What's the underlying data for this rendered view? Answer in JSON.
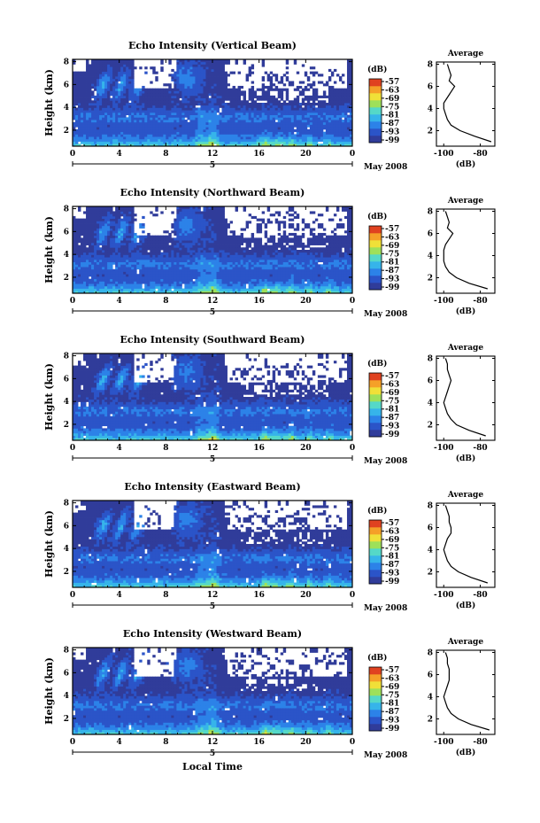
{
  "figure": {
    "xlabel": "Local Time",
    "date_label": "May 2008",
    "day_marker": "5",
    "cbar_unit": "(dB)",
    "avg_title": "Average",
    "avg_xlabel": "(dB)"
  },
  "chart_data": [
    {
      "type": "heatmap",
      "title": "Echo Intensity (Vertical Beam)",
      "ylabel": "Height (km)",
      "xlabel": "Local Time",
      "x_ticks": [
        "0",
        "4",
        "8",
        "12",
        "16",
        "20",
        "0"
      ],
      "xlim_hours": [
        0,
        24
      ],
      "y_ticks": [
        "2",
        "4",
        "6",
        "8"
      ],
      "ylim_km": [
        0.6,
        8.2
      ],
      "colorbar": {
        "label": "(dB)",
        "ticks": [
          "-57",
          "-63",
          "-69",
          "-75",
          "-81",
          "-87",
          "-93",
          "-99"
        ]
      },
      "average_profile": {
        "title": "Average",
        "xlabel": "(dB)",
        "x_ticks": [
          "-100",
          "-80"
        ],
        "xlim": [
          -104,
          -72
        ],
        "height_km": [
          1.0,
          1.5,
          2.0,
          2.5,
          3.0,
          3.5,
          4.0,
          4.5,
          5.0,
          5.5,
          6.0,
          6.5,
          7.0,
          7.5,
          8.0
        ],
        "db": [
          -74,
          -83,
          -91,
          -96,
          -98,
          -99,
          -100,
          -100,
          -98,
          -96,
          -94,
          -97,
          -96,
          -97,
          -98
        ]
      }
    },
    {
      "type": "heatmap",
      "title": "Echo Intensity (Northward Beam)",
      "ylabel": "Height (km)",
      "xlabel": "Local Time",
      "x_ticks": [
        "0",
        "4",
        "8",
        "12",
        "16",
        "20",
        "0"
      ],
      "xlim_hours": [
        0,
        24
      ],
      "y_ticks": [
        "2",
        "4",
        "6",
        "8"
      ],
      "ylim_km": [
        0.6,
        8.2
      ],
      "colorbar": {
        "label": "(dB)",
        "ticks": [
          "-57",
          "-63",
          "-69",
          "-75",
          "-81",
          "-87",
          "-93",
          "-99"
        ]
      },
      "average_profile": {
        "title": "Average",
        "xlabel": "(dB)",
        "x_ticks": [
          "-100",
          "-80"
        ],
        "xlim": [
          -104,
          -72
        ],
        "height_km": [
          1.0,
          1.5,
          2.0,
          2.5,
          3.0,
          3.5,
          4.0,
          4.5,
          5.0,
          5.5,
          6.0,
          6.5,
          7.0,
          7.5,
          8.0
        ],
        "db": [
          -76,
          -86,
          -93,
          -97,
          -99,
          -100,
          -100,
          -100,
          -99,
          -97,
          -95,
          -98,
          -97,
          -98,
          -99
        ]
      }
    },
    {
      "type": "heatmap",
      "title": "Echo Intensity (Southward Beam)",
      "ylabel": "Height (km)",
      "xlabel": "Local Time",
      "x_ticks": [
        "0",
        "4",
        "8",
        "12",
        "16",
        "20",
        "0"
      ],
      "xlim_hours": [
        0,
        24
      ],
      "y_ticks": [
        "2",
        "4",
        "6",
        "8"
      ],
      "ylim_km": [
        0.6,
        8.2
      ],
      "colorbar": {
        "label": "(dB)",
        "ticks": [
          "-57",
          "-63",
          "-69",
          "-75",
          "-81",
          "-87",
          "-93",
          "-99"
        ]
      },
      "average_profile": {
        "title": "Average",
        "xlabel": "(dB)",
        "x_ticks": [
          "-100",
          "-80"
        ],
        "xlim": [
          -104,
          -72
        ],
        "height_km": [
          1.0,
          1.5,
          2.0,
          2.5,
          3.0,
          3.5,
          4.0,
          4.5,
          5.0,
          5.5,
          6.0,
          6.5,
          7.0,
          7.5,
          8.0
        ],
        "db": [
          -77,
          -86,
          -93,
          -96,
          -98,
          -99,
          -100,
          -99,
          -98,
          -97,
          -96,
          -97,
          -98,
          -98,
          -99
        ]
      }
    },
    {
      "type": "heatmap",
      "title": "Echo Intensity (Eastward Beam)",
      "ylabel": "Height (km)",
      "xlabel": "Local Time",
      "x_ticks": [
        "0",
        "4",
        "8",
        "12",
        "16",
        "20",
        "0"
      ],
      "xlim_hours": [
        0,
        24
      ],
      "y_ticks": [
        "2",
        "4",
        "6",
        "8"
      ],
      "ylim_km": [
        0.6,
        8.2
      ],
      "colorbar": {
        "label": "(dB)",
        "ticks": [
          "-57",
          "-63",
          "-69",
          "-75",
          "-81",
          "-87",
          "-93",
          "-99"
        ]
      },
      "average_profile": {
        "title": "Average",
        "xlabel": "(dB)",
        "x_ticks": [
          "-100",
          "-80"
        ],
        "xlim": [
          -104,
          -72
        ],
        "height_km": [
          1.0,
          1.5,
          2.0,
          2.5,
          3.0,
          3.5,
          4.0,
          4.5,
          5.0,
          5.5,
          6.0,
          6.5,
          7.0,
          7.5,
          8.0
        ],
        "db": [
          -76,
          -85,
          -92,
          -96,
          -98,
          -99,
          -100,
          -99,
          -98,
          -96,
          -96,
          -97,
          -97,
          -98,
          -99
        ]
      }
    },
    {
      "type": "heatmap",
      "title": "Echo Intensity (Westward Beam)",
      "ylabel": "Height (km)",
      "xlabel": "Local Time",
      "x_ticks": [
        "0",
        "4",
        "8",
        "12",
        "16",
        "20",
        "0"
      ],
      "xlim_hours": [
        0,
        24
      ],
      "y_ticks": [
        "2",
        "4",
        "6",
        "8"
      ],
      "ylim_km": [
        0.6,
        8.2
      ],
      "colorbar": {
        "label": "(dB)",
        "ticks": [
          "-57",
          "-63",
          "-69",
          "-75",
          "-81",
          "-87",
          "-93",
          "-99"
        ]
      },
      "average_profile": {
        "title": "Average",
        "xlabel": "(dB)",
        "x_ticks": [
          "-100",
          "-80"
        ],
        "xlim": [
          -104,
          -72
        ],
        "height_km": [
          1.0,
          1.5,
          2.0,
          2.5,
          3.0,
          3.5,
          4.0,
          4.5,
          5.0,
          5.5,
          6.0,
          6.5,
          7.0,
          7.5,
          8.0
        ],
        "db": [
          -75,
          -85,
          -92,
          -96,
          -98,
          -99,
          -100,
          -99,
          -98,
          -97,
          -97,
          -97,
          -98,
          -98,
          -99
        ]
      }
    }
  ],
  "colormap": [
    "#303c9a",
    "#2b54c8",
    "#2c82e8",
    "#36b4ea",
    "#55d8c8",
    "#9ee05a",
    "#f0e038",
    "#f5a028",
    "#e04220"
  ]
}
